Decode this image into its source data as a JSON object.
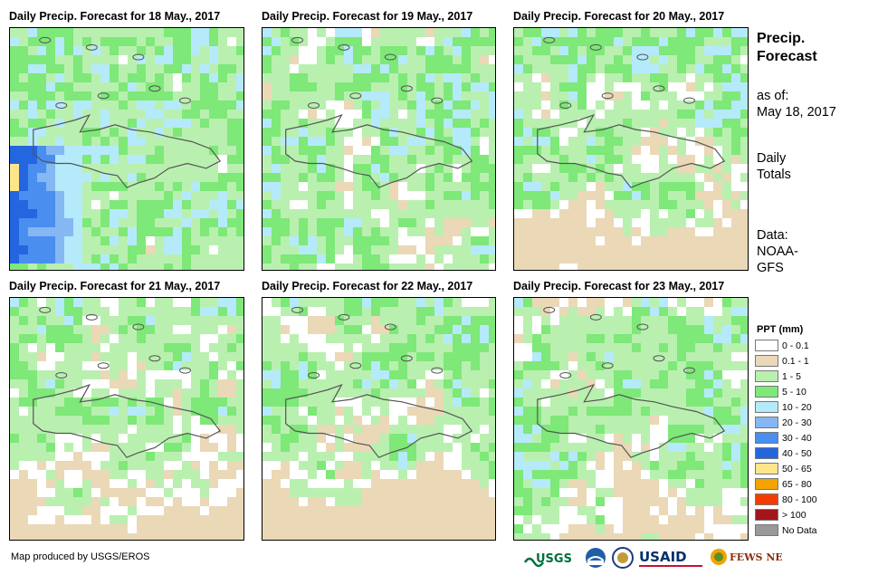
{
  "panels": [
    {
      "title": "Daily Precip. Forecast for 18 May., 2017"
    },
    {
      "title": "Daily Precip. Forecast for 19 May., 2017"
    },
    {
      "title": "Daily Precip. Forecast for 20 May., 2017"
    },
    {
      "title": "Daily Precip. Forecast for 21 May., 2017"
    },
    {
      "title": "Daily Precip. Forecast for 22 May., 2017"
    },
    {
      "title": "Daily Precip. Forecast for 23 May., 2017"
    }
  ],
  "sidebar": {
    "title_line1": "Precip.",
    "title_line2": "Forecast",
    "asof_line1": "as of:",
    "asof_line2": "May 18, 2017",
    "totals_line1": "Daily",
    "totals_line2": "Totals",
    "data_line1": "Data:",
    "data_line2": "NOAA-",
    "data_line3": "GFS"
  },
  "legend": {
    "title": "PPT (mm)",
    "items": [
      {
        "label": "0 - 0.1",
        "color": "#ffffff"
      },
      {
        "label": "0.1 - 1",
        "color": "#ead8b7"
      },
      {
        "label": "1 - 5",
        "color": "#b9f0b0"
      },
      {
        "label": "5 - 10",
        "color": "#7ee878"
      },
      {
        "label": "10 - 20",
        "color": "#b5eafa"
      },
      {
        "label": "20 - 30",
        "color": "#85b7f2"
      },
      {
        "label": "30 - 40",
        "color": "#4a8ef0"
      },
      {
        "label": "40 - 50",
        "color": "#2366e0"
      },
      {
        "label": "50 - 65",
        "color": "#fce58a"
      },
      {
        "label": "65 - 80",
        "color": "#f5a300"
      },
      {
        "label": "80 - 100",
        "color": "#f53c00"
      },
      {
        "label": "> 100",
        "color": "#a3151a"
      },
      {
        "label": "No Data",
        "color": "#999999"
      }
    ]
  },
  "credit": "Map produced by USGS/EROS",
  "logos": {
    "usgs": "USGS",
    "usaid": "USAID",
    "fewsnet": "FEWS NET"
  }
}
